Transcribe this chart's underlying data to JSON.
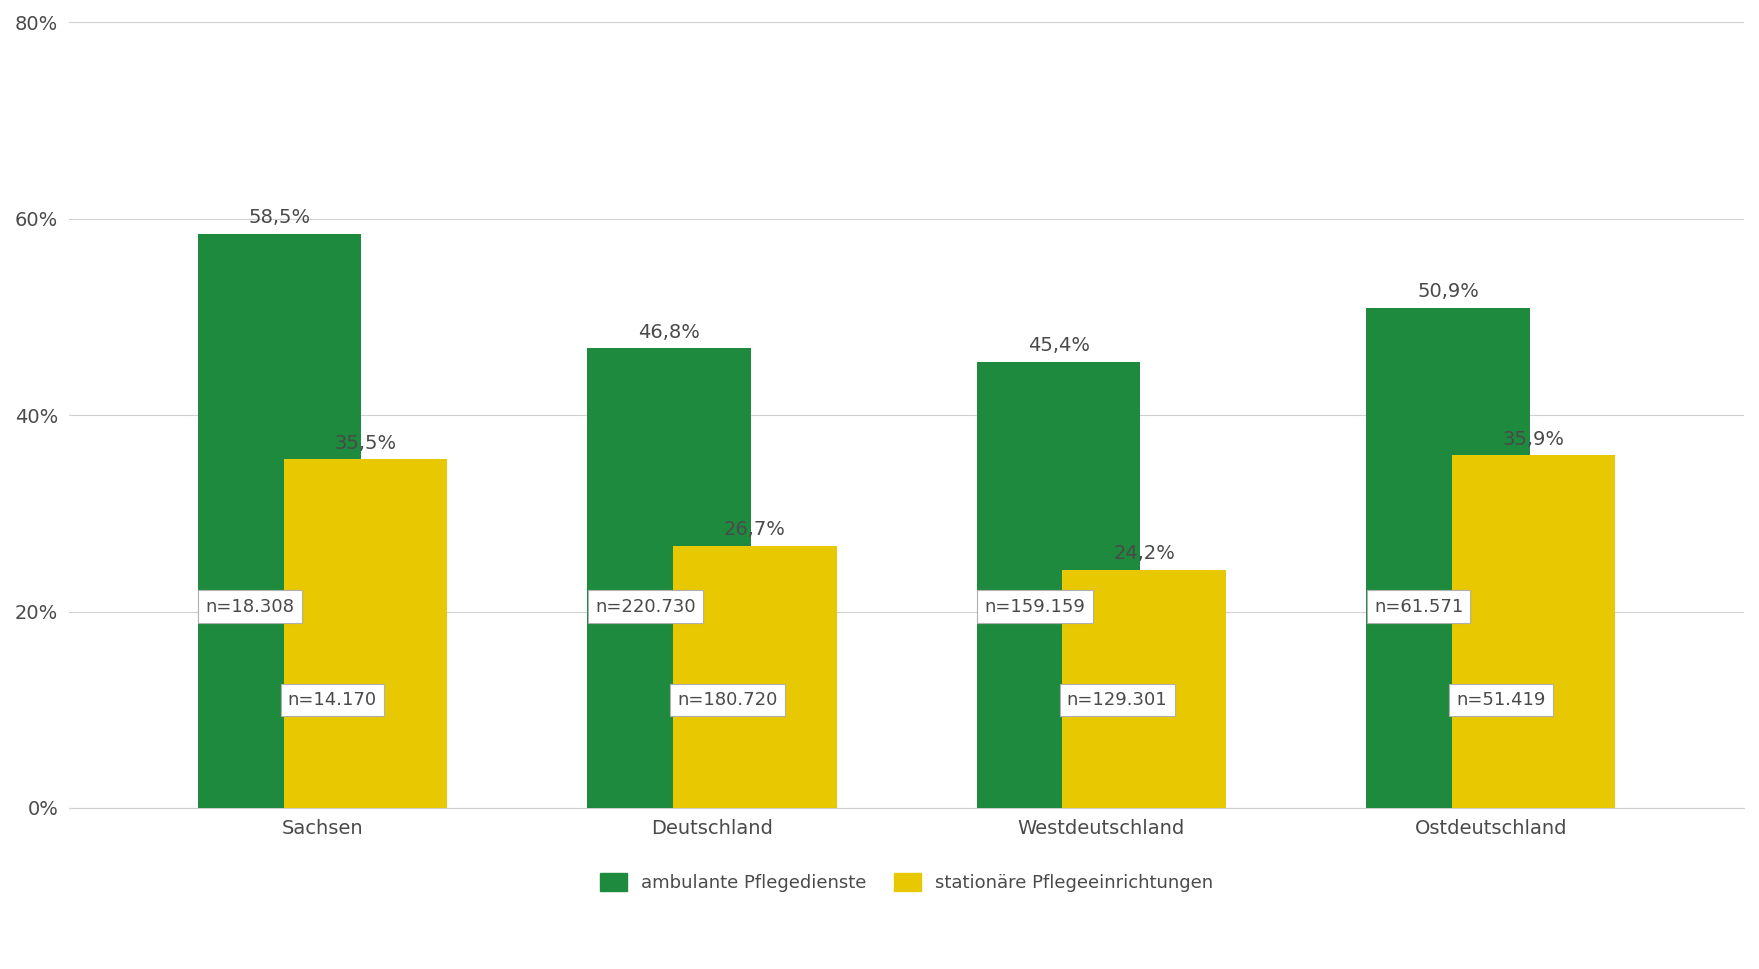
{
  "categories": [
    "Sachsen",
    "Deutschland",
    "Westdeutschland",
    "Ostdeutschland"
  ],
  "ambulante_values": [
    58.5,
    46.8,
    45.4,
    50.9
  ],
  "stationaere_values": [
    35.5,
    26.7,
    24.2,
    35.9
  ],
  "ambulante_n": [
    "n=18.308",
    "n=220.730",
    "n=159.159",
    "n=61.571"
  ],
  "stationaere_n": [
    "n=14.170",
    "n=180.720",
    "n=129.301",
    "n=51.419"
  ],
  "ambulante_color": "#1e8a3e",
  "stationaere_color": "#e8c800",
  "bar_width": 0.42,
  "bar_gap": 0.02,
  "ylim": [
    0,
    80
  ],
  "yticks": [
    0,
    20,
    40,
    60,
    80
  ],
  "ytick_labels": [
    "0%",
    "20%",
    "40%",
    "60%",
    "80%"
  ],
  "legend_ambulante": "ambulante Pflegedienste",
  "legend_stationaere": "stationäre Pflegeeinrichtungen",
  "background_color": "#ffffff",
  "grid_color": "#d0d0d0",
  "font_color": "#4a4a4a",
  "label_fontsize": 14,
  "tick_fontsize": 14,
  "annot_fontsize": 13
}
